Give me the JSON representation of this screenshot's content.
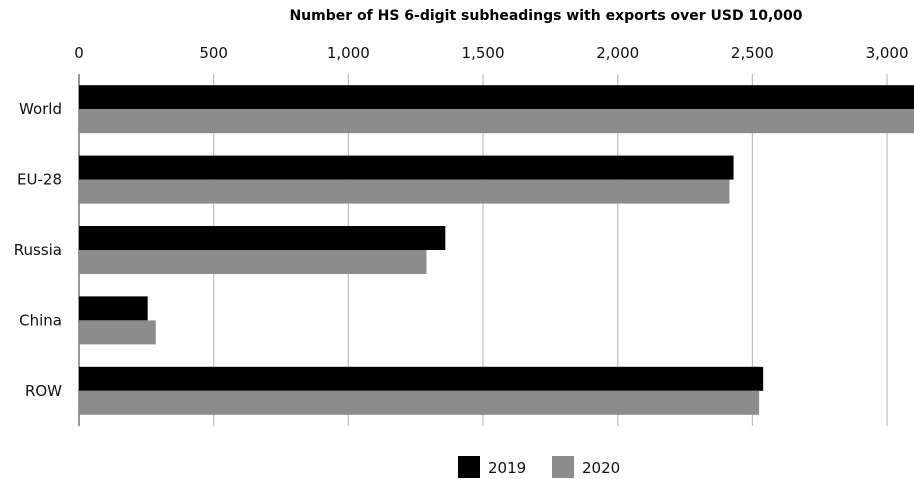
{
  "chart_data": {
    "type": "bar",
    "orientation": "horizontal",
    "title": "Number of HS 6-digit subheadings with exports over USD 10,000",
    "xlabel": "",
    "ylabel": "",
    "categories": [
      "World",
      "EU-28",
      "Russia",
      "China",
      "ROW"
    ],
    "series": [
      {
        "name": "2019",
        "color": "#000000",
        "values": [
          3120,
          2430,
          1360,
          255,
          2540
        ]
      },
      {
        "name": "2020",
        "color": "#8c8c8c",
        "values": [
          3105,
          2415,
          1290,
          285,
          2525
        ]
      }
    ],
    "xlim": [
      0,
      3100
    ],
    "xticks": [
      0,
      500,
      1000,
      1500,
      2000,
      2500,
      3000
    ],
    "xtick_labels": [
      "0",
      "500",
      "1,000",
      "1,500",
      "2,000",
      "2,500",
      "3,000"
    ],
    "axis_position": "top",
    "grid": true,
    "legend_position": "bottom-center"
  }
}
